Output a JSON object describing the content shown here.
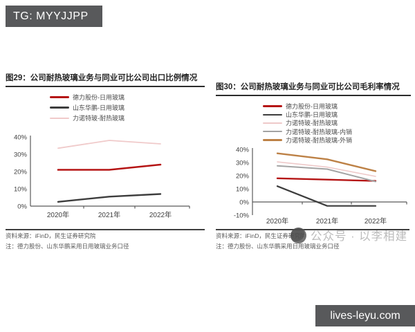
{
  "badges": {
    "top_left": "TG: MYYJJPP",
    "bottom_right": "lives-leyu.com"
  },
  "watermark": {
    "logo_icon": "wechat-account-circle-logo",
    "text": "公众号 · 以李相建"
  },
  "figures": [
    {
      "title": "图29：公司耐热玻璃业务与同业可比公司出口比例情况",
      "source": "资料来源：iFinD，民生证券研究院",
      "note": "注：德力股份、山东华鹏采用日用玻璃业务口径",
      "chart_data": {
        "type": "line",
        "title": "公司耐热玻璃业务与同业可比公司出口比例情况",
        "categories": [
          "2020年",
          "2021年",
          "2022年"
        ],
        "series": [
          {
            "name": "德力股份-日用玻璃",
            "color": "#b51414",
            "stroke_width": 2.6,
            "values": [
              21,
              21,
              24
            ]
          },
          {
            "name": "山东华鹏-日用玻璃",
            "color": "#3d3d3d",
            "stroke_width": 2.4,
            "values": [
              2.5,
              5.5,
              7
            ]
          },
          {
            "name": "力诺特玻-耐热玻璃",
            "color": "#f0caca",
            "stroke_width": 1.8,
            "values": [
              33.5,
              38,
              36
            ]
          }
        ],
        "ylim": [
          0,
          40
        ],
        "yticks": [
          0,
          10,
          20,
          30,
          40
        ],
        "ytick_suffix": "%",
        "legend_position": "top",
        "grid": false
      }
    },
    {
      "title": "图30：公司耐热玻璃业务与同业可比公司毛利率情况",
      "source": "资料来源：iFinD，民生证券研究院",
      "note": "注：德力股份、山东华鹏采用日用玻璃业务口径",
      "chart_data": {
        "type": "line",
        "title": "公司耐热玻璃业务与同业可比公司毛利率情况",
        "categories": [
          "2020年",
          "2021年",
          "2022年"
        ],
        "series": [
          {
            "name": "德力股份-日用玻璃",
            "color": "#b51414",
            "stroke_width": 2.4,
            "values": [
              18,
              17,
              16
            ]
          },
          {
            "name": "山东华鹏-日用玻璃",
            "color": "#3d3d3d",
            "stroke_width": 2.2,
            "values": [
              12,
              -3,
              -3
            ]
          },
          {
            "name": "力诺特玻-耐热玻璃",
            "color": "#eec9c9",
            "stroke_width": 1.6,
            "values": [
              30.5,
              26.5,
              19.5
            ]
          },
          {
            "name": "力诺特玻-耐热玻璃-内销",
            "color": "#a3a3a3",
            "stroke_width": 2.0,
            "values": [
              27.5,
              25,
              15.5
            ]
          },
          {
            "name": "力诺特玻-耐热玻璃-外销",
            "color": "#bd8146",
            "stroke_width": 2.4,
            "values": [
              37,
              32.5,
              23.5
            ]
          }
        ],
        "ylim": [
          -10,
          40
        ],
        "yticks": [
          -10,
          0,
          10,
          20,
          30,
          40
        ],
        "ytick_suffix": "%",
        "legend_position": "top",
        "grid": false
      }
    }
  ]
}
